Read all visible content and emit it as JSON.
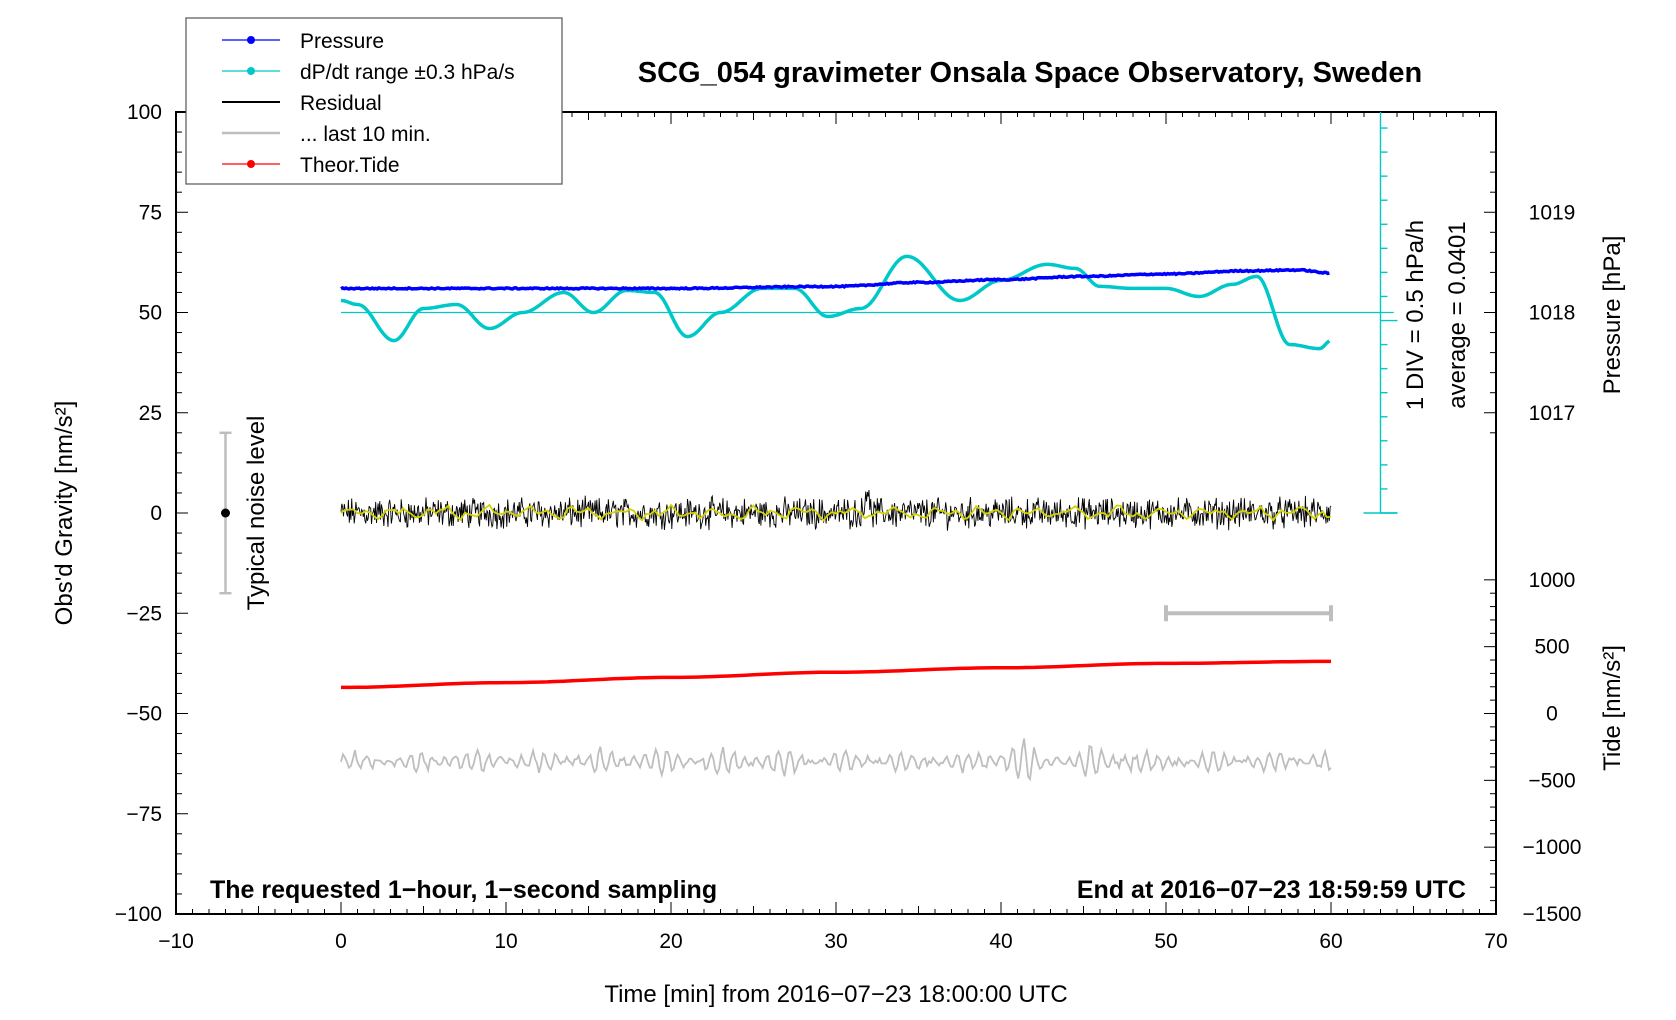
{
  "chart_data": {
    "type": "line",
    "title": "SCG_054 gravimeter Onsala Space Observatory, Sweden",
    "xlabel": "Time [min] from 2016−07−23 18:00:00 UTC",
    "ylabel_left": "Obs'd Gravity [nm/s²]",
    "ylabel_right_top": "Pressure [hPa]",
    "ylabel_right_bottom": "Tide [nm/s²]",
    "xlim": [
      -10,
      70
    ],
    "ylim": [
      -100,
      100
    ],
    "x_ticks": [
      "−10",
      "0",
      "10",
      "20",
      "30",
      "40",
      "50",
      "60",
      "70"
    ],
    "y_ticks": [
      "−100",
      "−75",
      "−50",
      "−25",
      "0",
      "25",
      "50",
      "75",
      "100"
    ],
    "pressure_ticks": [
      "1017",
      "1018",
      "1019"
    ],
    "tide_ticks": [
      "−1500",
      "−1000",
      "−500",
      "0",
      "500",
      "1000"
    ],
    "note_left": "The requested 1−hour, 1−second sampling",
    "note_right": "End at 2016−07−23 18:59:59 UTC",
    "noise_label": "Typical noise level",
    "noise_bar": [
      -20,
      20
    ],
    "scale_bar_text": "1 DIV = 0.5 hPa/h",
    "average_text": "average = 0.0401",
    "legend": {
      "placement": "top-left",
      "entries": [
        {
          "label": "Pressure",
          "color": "#0000ff"
        },
        {
          "label": "dP/dt range ±0.3 hPa/s",
          "color": "#00c8c8"
        },
        {
          "label": "Residual",
          "color": "#000000"
        },
        {
          "label": "... last 10 min.",
          "color": "#bebebe"
        },
        {
          "label": "Theor.Tide",
          "color": "#ff0000"
        }
      ]
    },
    "last_10_min_bar": {
      "x": [
        50,
        60
      ],
      "y": -25
    },
    "colors": {
      "pressure": "#0000ff",
      "dpdt": "#00c8c8",
      "residual": "#000000",
      "residual_smoothed": "#d2d200",
      "residual_shifted": "#bebebe",
      "tide": "#ff0000"
    },
    "series": [
      {
        "name": "Pressure",
        "x": [
          0,
          10,
          20,
          30,
          35,
          40,
          45,
          50,
          55,
          58,
          60
        ],
        "y": [
          56,
          56,
          56,
          56.5,
          57.5,
          58.2,
          59,
          59.6,
          60.4,
          60.6,
          59.8
        ]
      },
      {
        "name": "dP/dt range ±0.3 hPa/s",
        "x": [
          0,
          1,
          3.2,
          5,
          7,
          9,
          11,
          13.5,
          15.3,
          17.3,
          19,
          21,
          23,
          25.5,
          27.5,
          29.5,
          31.5,
          34.3,
          37.5,
          40,
          42.8,
          44.5,
          46,
          48,
          50,
          52,
          54,
          55.5,
          57.5,
          59.3,
          60
        ],
        "y": [
          53,
          52,
          43,
          51,
          52,
          46,
          50,
          55,
          50,
          55.5,
          55,
          44,
          50,
          56,
          56,
          49,
          51,
          64,
          53,
          58,
          62,
          61,
          56.5,
          56,
          56,
          54,
          57,
          59,
          42,
          41,
          43
        ]
      },
      {
        "name": "Residual",
        "x": [
          0,
          60
        ],
        "y": [
          0,
          0
        ]
      },
      {
        "name": "... last 10 min.",
        "x": [
          0,
          60
        ],
        "y": [
          -62,
          -62
        ]
      },
      {
        "name": "Theor.Tide",
        "x": [
          0,
          10,
          20,
          30,
          40,
          50,
          60
        ],
        "y": [
          -43.5,
          -42.3,
          -41,
          -39.7,
          -38.6,
          -37.5,
          -37
        ]
      }
    ]
  }
}
